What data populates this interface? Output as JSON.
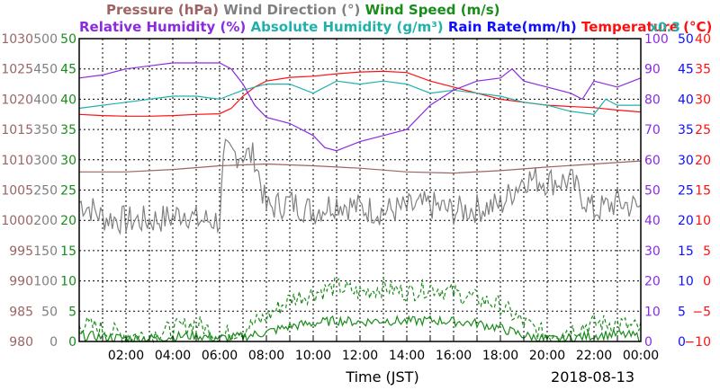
{
  "chart_data": {
    "type": "line",
    "title_row1": [
      {
        "text": "Pressure (hPa)",
        "color": "#9c6464"
      },
      {
        "text": "Wind Direction (°)",
        "color": "#808080"
      },
      {
        "text": "Wind Speed (m/s)",
        "color": "#1a8c1a"
      }
    ],
    "title_row2": [
      {
        "text": "Relative Humidity (%)",
        "color": "#8a2be2"
      },
      {
        "text": "Absolute Humidity (g/m³)",
        "color": "#20b2aa"
      },
      {
        "text": "Rain Rate(mm/h)",
        "color": "#1010ff"
      },
      {
        "text": "Temperature (°C)",
        "color": "#ff1010"
      }
    ],
    "multiplier_label": "x0.3",
    "xlabel": "Time (JST)",
    "date_label": "2018-08-13",
    "x_range_hours": [
      0,
      24
    ],
    "x_ticks": [
      "02:00",
      "04:00",
      "06:00",
      "08:00",
      "10:00",
      "12:00",
      "14:00",
      "16:00",
      "18:00",
      "20:00",
      "22:00",
      "00:00"
    ],
    "grid": true,
    "left_axes": [
      {
        "name": "pressure",
        "color": "#9c6464",
        "range": [
          980,
          1030
        ],
        "ticks": [
          "980",
          "985",
          "990",
          "995",
          "1000",
          "1005",
          "1010",
          "1015",
          "1020",
          "1025",
          "1030"
        ]
      },
      {
        "name": "wind_direction",
        "color": "#808080",
        "range": [
          0,
          500
        ],
        "ticks": [
          "0",
          "50",
          "100",
          "150",
          "200",
          "250",
          "300",
          "350",
          "400",
          "450",
          "500"
        ]
      },
      {
        "name": "wind_speed",
        "color": "#1a8c1a",
        "range": [
          0,
          50
        ],
        "ticks": [
          "0",
          "5",
          "10",
          "15",
          "20",
          "25",
          "30",
          "35",
          "40",
          "45",
          "50"
        ]
      }
    ],
    "right_axes": [
      {
        "name": "humidity",
        "color": "#8a2be2",
        "range": [
          0,
          100
        ],
        "ticks": [
          "0",
          "10",
          "20",
          "30",
          "40",
          "50",
          "60",
          "70",
          "80",
          "90",
          "100"
        ]
      },
      {
        "name": "rain_rate",
        "color": "#1010ff",
        "range": [
          0,
          50
        ],
        "ticks": [
          "0",
          "5",
          "10",
          "15",
          "20",
          "25",
          "30",
          "35",
          "40",
          "45",
          "50"
        ]
      },
      {
        "name": "temperature",
        "color": "#ff1010",
        "range": [
          -10,
          40
        ],
        "ticks": [
          "−10",
          "−5",
          "0",
          "5",
          "10",
          "15",
          "20",
          "25",
          "30",
          "35",
          "40"
        ]
      }
    ],
    "series": [
      {
        "name": "Temperature",
        "axis": "temperature",
        "color": "#ff1010",
        "style": "solid",
        "points": [
          [
            0,
            27.5
          ],
          [
            1,
            27.3
          ],
          [
            2,
            27.2
          ],
          [
            3,
            27.2
          ],
          [
            4,
            27.3
          ],
          [
            5,
            27.5
          ],
          [
            6,
            27.6
          ],
          [
            6.5,
            28.5
          ],
          [
            7,
            30.5
          ],
          [
            7.5,
            32
          ],
          [
            8,
            33
          ],
          [
            9,
            33.6
          ],
          [
            10,
            33.8
          ],
          [
            11,
            34.2
          ],
          [
            12,
            34.5
          ],
          [
            13,
            34.6
          ],
          [
            14,
            34.4
          ],
          [
            15,
            33
          ],
          [
            16,
            32
          ],
          [
            17,
            31
          ],
          [
            18,
            30
          ],
          [
            19,
            29.5
          ],
          [
            20,
            29
          ],
          [
            21,
            28.8
          ],
          [
            22,
            28.6
          ],
          [
            23,
            28.2
          ],
          [
            24,
            27.9
          ]
        ]
      },
      {
        "name": "Absolute Humidity",
        "axis": "humidity",
        "color": "#20b2aa",
        "style": "solid",
        "note": "x0.3",
        "points": [
          [
            0,
            77
          ],
          [
            1,
            78
          ],
          [
            2,
            79
          ],
          [
            3,
            80
          ],
          [
            4,
            81
          ],
          [
            5,
            81
          ],
          [
            6,
            80
          ],
          [
            7,
            83
          ],
          [
            8,
            85
          ],
          [
            9,
            85
          ],
          [
            10,
            82
          ],
          [
            11,
            86
          ],
          [
            12,
            85
          ],
          [
            13,
            86
          ],
          [
            14,
            85
          ],
          [
            15,
            82
          ],
          [
            16,
            83
          ],
          [
            17,
            82
          ],
          [
            18,
            81
          ],
          [
            19,
            79
          ],
          [
            20,
            78
          ],
          [
            21,
            76
          ],
          [
            22,
            75
          ],
          [
            22.5,
            80
          ],
          [
            23,
            78
          ],
          [
            24,
            78
          ]
        ]
      },
      {
        "name": "Relative Humidity",
        "axis": "humidity",
        "color": "#8a2be2",
        "style": "solid",
        "points": [
          [
            0,
            87
          ],
          [
            1,
            88
          ],
          [
            2,
            90
          ],
          [
            3,
            91
          ],
          [
            4,
            92
          ],
          [
            5,
            92
          ],
          [
            6,
            92
          ],
          [
            6.5,
            90
          ],
          [
            7,
            85
          ],
          [
            7.5,
            78
          ],
          [
            8,
            74
          ],
          [
            9,
            72
          ],
          [
            10,
            68
          ],
          [
            10.5,
            64
          ],
          [
            11,
            63
          ],
          [
            12,
            66
          ],
          [
            13,
            68
          ],
          [
            14,
            70
          ],
          [
            14.5,
            74
          ],
          [
            15,
            78
          ],
          [
            16,
            83
          ],
          [
            17,
            86
          ],
          [
            18,
            87
          ],
          [
            18.5,
            90
          ],
          [
            19,
            86
          ],
          [
            20,
            84
          ],
          [
            21,
            82
          ],
          [
            21.5,
            80
          ],
          [
            22,
            86
          ],
          [
            23,
            84
          ],
          [
            24,
            87
          ]
        ]
      },
      {
        "name": "Pressure",
        "axis": "pressure",
        "color": "#9c6464",
        "style": "solid",
        "points": [
          [
            0,
            1008
          ],
          [
            2,
            1008
          ],
          [
            4,
            1008.4
          ],
          [
            6,
            1009
          ],
          [
            8,
            1009.3
          ],
          [
            10,
            1009
          ],
          [
            12,
            1008.6
          ],
          [
            14,
            1008
          ],
          [
            16,
            1007.8
          ],
          [
            18,
            1008.2
          ],
          [
            20,
            1008.8
          ],
          [
            22,
            1009.3
          ],
          [
            24,
            1009.8
          ]
        ]
      },
      {
        "name": "Wind Direction",
        "axis": "wind_direction",
        "color": "#808080",
        "style": "solid",
        "kind": "noisy",
        "points": [
          [
            0,
            230
          ],
          [
            0.5,
            220
          ],
          [
            1,
            205
          ],
          [
            2,
            200
          ],
          [
            3,
            200
          ],
          [
            4,
            205
          ],
          [
            4.5,
            215
          ],
          [
            5,
            200
          ],
          [
            6,
            200
          ],
          [
            6.2,
            310
          ],
          [
            7,
            310
          ],
          [
            7.5,
            305
          ],
          [
            8,
            220
          ],
          [
            9,
            230
          ],
          [
            10,
            215
          ],
          [
            11,
            230
          ],
          [
            12,
            220
          ],
          [
            13,
            215
          ],
          [
            14,
            220
          ],
          [
            15,
            225
          ],
          [
            16,
            215
          ],
          [
            17,
            220
          ],
          [
            18,
            225
          ],
          [
            19,
            270
          ],
          [
            20,
            265
          ],
          [
            21,
            265
          ],
          [
            22,
            215
          ],
          [
            23,
            230
          ],
          [
            24,
            220
          ]
        ]
      },
      {
        "name": "Wind Speed (gust)",
        "axis": "wind_speed",
        "color": "#1a8c1a",
        "style": "dashed",
        "kind": "noisy",
        "points": [
          [
            0,
            3
          ],
          [
            1,
            2
          ],
          [
            2,
            1
          ],
          [
            3,
            1
          ],
          [
            4,
            2
          ],
          [
            5,
            3
          ],
          [
            6,
            1
          ],
          [
            7,
            2
          ],
          [
            8,
            4
          ],
          [
            9,
            7
          ],
          [
            10,
            8
          ],
          [
            11,
            9
          ],
          [
            12,
            8
          ],
          [
            13,
            9
          ],
          [
            14,
            8
          ],
          [
            15,
            9
          ],
          [
            16,
            8
          ],
          [
            17,
            7
          ],
          [
            18,
            6
          ],
          [
            19,
            3
          ],
          [
            20,
            1
          ],
          [
            21,
            2
          ],
          [
            22,
            3
          ],
          [
            23,
            3
          ],
          [
            24,
            2
          ]
        ]
      },
      {
        "name": "Wind Speed",
        "axis": "wind_speed",
        "color": "#1a8c1a",
        "style": "solid",
        "kind": "noisy",
        "points": [
          [
            0,
            1
          ],
          [
            1,
            0.8
          ],
          [
            2,
            0.5
          ],
          [
            3,
            0.5
          ],
          [
            4,
            0.8
          ],
          [
            5,
            1
          ],
          [
            6,
            0.5
          ],
          [
            7,
            0.8
          ],
          [
            8,
            1.5
          ],
          [
            9,
            2.5
          ],
          [
            10,
            3
          ],
          [
            11,
            3.5
          ],
          [
            12,
            3.2
          ],
          [
            13,
            3.5
          ],
          [
            14,
            3.3
          ],
          [
            15,
            3.5
          ],
          [
            16,
            3.3
          ],
          [
            17,
            3
          ],
          [
            18,
            2.2
          ],
          [
            19,
            1
          ],
          [
            20,
            0.3
          ],
          [
            21,
            0.5
          ],
          [
            22,
            1
          ],
          [
            23,
            1.2
          ],
          [
            24,
            0.8
          ]
        ]
      }
    ]
  }
}
